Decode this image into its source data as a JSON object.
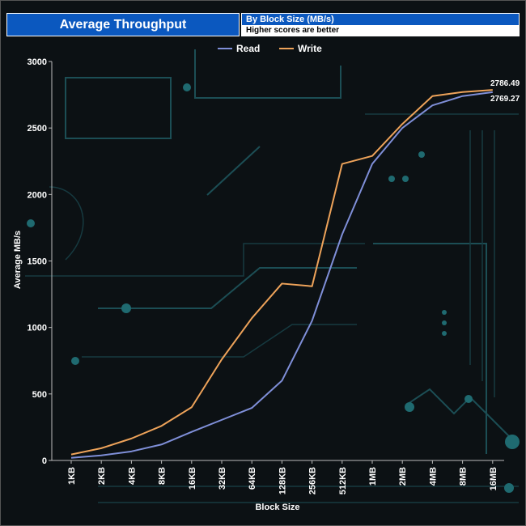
{
  "header": {
    "title": "Average Throughput",
    "subtitle": "By Block Size (MB/s)",
    "note": "Higher scores are better"
  },
  "colors": {
    "header_blue": "#0b58bf",
    "read": "#7f8fd8",
    "write": "#eea35a",
    "background": "#0c1114",
    "circuit": "#1c4e55"
  },
  "chart_data": {
    "type": "line",
    "categories": [
      "1KB",
      "2KB",
      "4KB",
      "8KB",
      "16KB",
      "32KB",
      "64KB",
      "128KB",
      "256KB",
      "512KB",
      "1MB",
      "2MB",
      "4MB",
      "8MB",
      "16MB"
    ],
    "series": [
      {
        "name": "Read",
        "color": "#7f8fd8",
        "values": [
          20,
          38,
          68,
          120,
          215,
          305,
          395,
          600,
          1050,
          1700,
          2230,
          2500,
          2670,
          2740,
          2769.27
        ]
      },
      {
        "name": "Write",
        "color": "#eea35a",
        "values": [
          45,
          92,
          165,
          260,
          400,
          760,
          1070,
          1330,
          1310,
          2230,
          2290,
          2530,
          2740,
          2770,
          2786.49
        ]
      }
    ],
    "end_labels": [
      "2786.49",
      "2769.27"
    ],
    "xlabel": "Block Size",
    "ylabel": "Average MB/s",
    "ylim": [
      0,
      3000
    ],
    "yticks": [
      "0",
      "500",
      "1000",
      "1500",
      "2000",
      "2500",
      "3000"
    ],
    "grid": false,
    "legend_position": "top-center"
  }
}
